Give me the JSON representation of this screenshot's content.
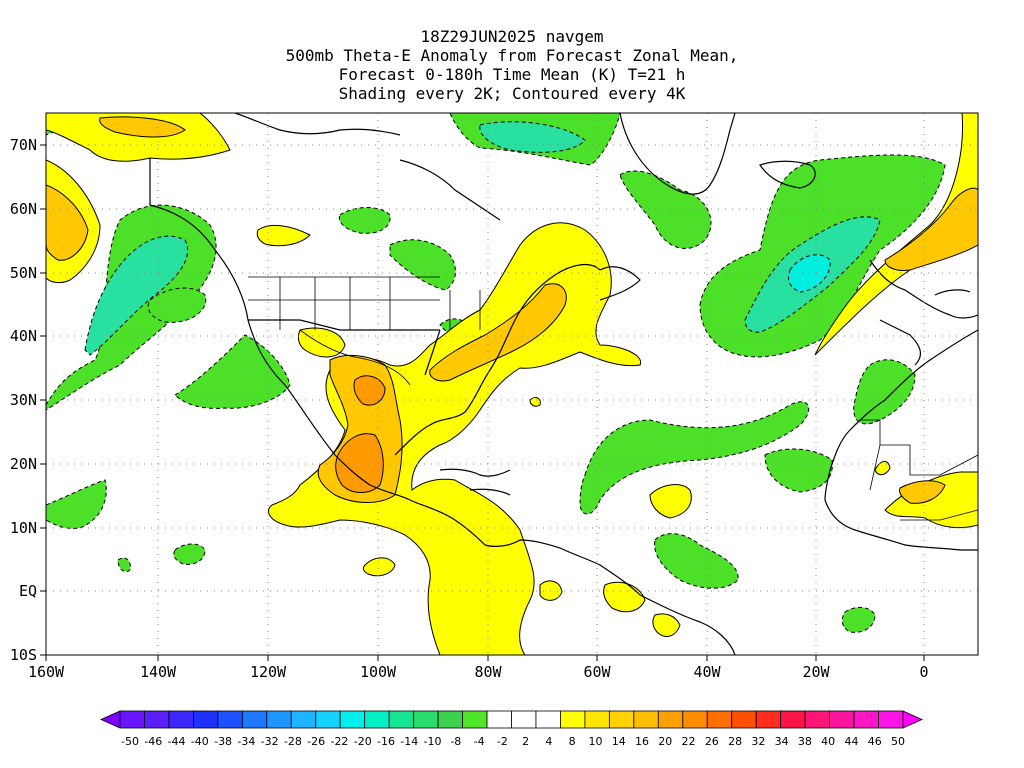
{
  "title": {
    "line1": "18Z29JUN2025 navgem",
    "line2": "500mb Theta-E Anomaly from Forecast Zonal Mean,",
    "line3": "Forecast 0-180h Time Mean (K) T=21 h",
    "line4": "Shading every 2K; Contoured every 4K"
  },
  "axes": {
    "lon_labels": [
      "160W",
      "140W",
      "120W",
      "100W",
      "80W",
      "60W",
      "40W",
      "20W",
      "0"
    ],
    "lon_values": [
      -160,
      -140,
      -120,
      -100,
      -80,
      -60,
      -40,
      -20,
      0
    ],
    "lat_labels": [
      "70N",
      "60N",
      "50N",
      "40N",
      "30N",
      "20N",
      "10N",
      "EQ",
      "10S"
    ],
    "lat_values": [
      70,
      60,
      50,
      40,
      30,
      20,
      10,
      0,
      -10
    ],
    "lon_range": [
      -160,
      10
    ],
    "lat_range": [
      -10,
      75
    ],
    "grid": "dotted"
  },
  "colorbar": {
    "labels": [
      "-50",
      "-46",
      "-44",
      "-40",
      "-38",
      "-34",
      "-32",
      "-28",
      "-26",
      "-22",
      "-20",
      "-16",
      "-14",
      "-10",
      "-8",
      "-4",
      "-2",
      "2",
      "4",
      "8",
      "10",
      "14",
      "16",
      "20",
      "22",
      "26",
      "28",
      "32",
      "34",
      "38",
      "40",
      "44",
      "46",
      "50"
    ],
    "colors": [
      "#7f00ff",
      "#6a14ff",
      "#5a1eff",
      "#3c28ff",
      "#1e32ff",
      "#1e50ff",
      "#1e78ff",
      "#1e96ff",
      "#1eb4ff",
      "#14d2ff",
      "#00f0f0",
      "#00f0c8",
      "#14e696",
      "#28dc6e",
      "#3cd250",
      "#50e628",
      "#ffffff",
      "#ffffff",
      "#ffffff",
      "#ffff00",
      "#ffe600",
      "#ffd200",
      "#ffbe00",
      "#ffa000",
      "#ff8c00",
      "#ff6e00",
      "#ff5000",
      "#ff2d1e",
      "#ff1446",
      "#ff1478",
      "#ff14a0",
      "#ff14c8",
      "#ff14e6",
      "#ff00ff"
    ]
  }
}
